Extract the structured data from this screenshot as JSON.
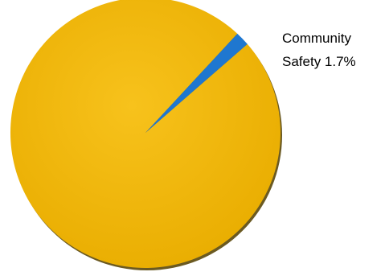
{
  "chart_data": {
    "type": "pie",
    "title": "",
    "slices": [
      {
        "label": "",
        "value": 98.3,
        "color": "#f2b705"
      },
      {
        "label": "Community Safety",
        "value": 1.7,
        "color": "#1f77d0"
      }
    ],
    "data_labels": [
      {
        "line1": "Community",
        "line2": "Safety 1.7%"
      }
    ],
    "legend": "none",
    "shadow_color": "#6b5a22",
    "gradient_light": "#f7c21c",
    "gradient_dark": "#e9ad00"
  }
}
